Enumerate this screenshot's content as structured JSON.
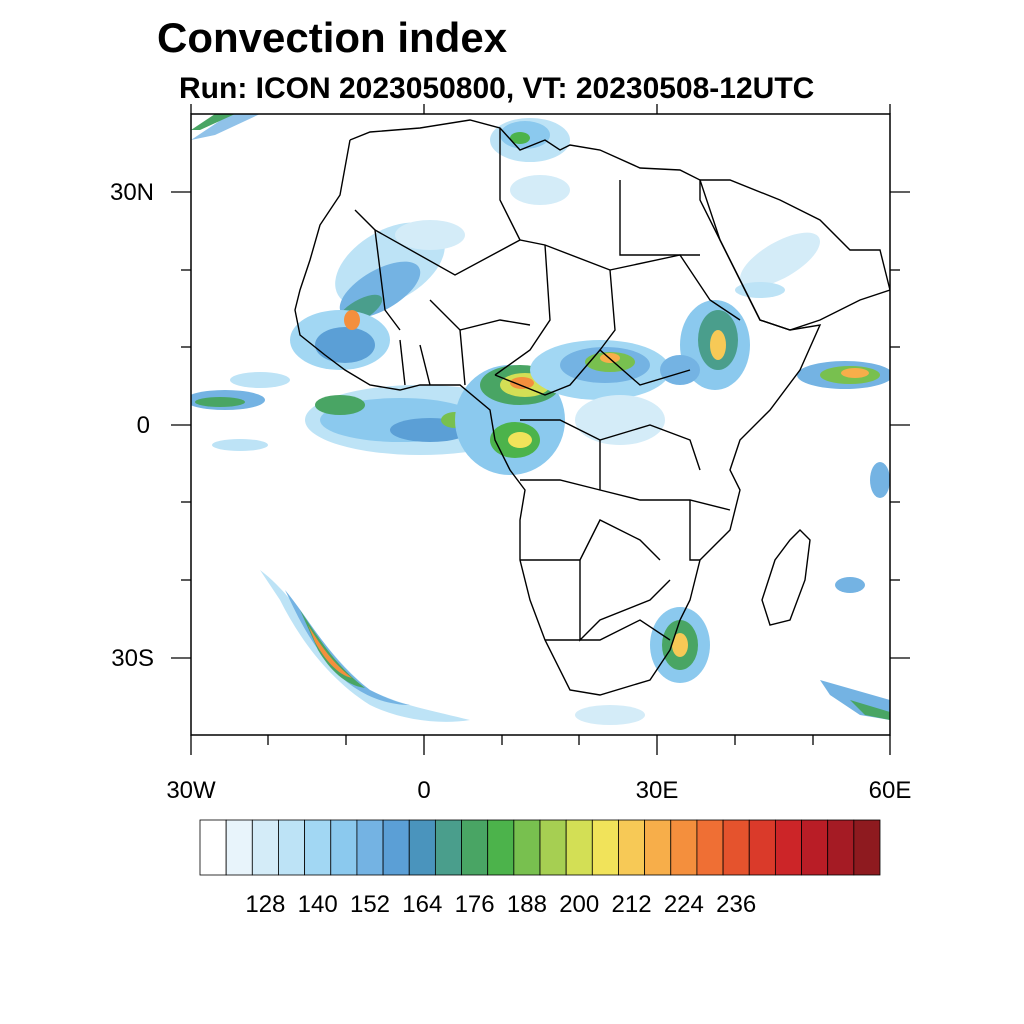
{
  "title": "Convection index",
  "subtitle": "Run: ICON 2023050800,  VT: 20230508-12UTC",
  "map": {
    "lon_range": [
      -30,
      60
    ],
    "lat_range": [
      -40,
      40
    ],
    "x_ticks": [
      {
        "lon": -30,
        "label": "30W"
      },
      {
        "lon": 0,
        "label": "0"
      },
      {
        "lon": 30,
        "label": "30E"
      },
      {
        "lon": 60,
        "label": "60E"
      }
    ],
    "y_ticks": [
      {
        "lat": 30,
        "label": "30N"
      },
      {
        "lat": 0,
        "label": "0"
      },
      {
        "lat": -30,
        "label": "30S"
      }
    ]
  },
  "colorbar": {
    "colors": [
      "#ffffff",
      "#e8f4fb",
      "#d4ecf8",
      "#bde3f6",
      "#a2d7f3",
      "#8bc9ee",
      "#74b3e3",
      "#5b9fd6",
      "#4a94bd",
      "#4a9e8c",
      "#49a564",
      "#4cb34b",
      "#78c04f",
      "#a6cf52",
      "#d3df55",
      "#f1e35a",
      "#f7c956",
      "#f7ae4a",
      "#f48f3d",
      "#ef6f34",
      "#e5532d",
      "#da3a2a",
      "#cc2528",
      "#b91d26",
      "#a51b24",
      "#8e1a1f"
    ],
    "labels": [
      "128",
      "140",
      "152",
      "164",
      "176",
      "188",
      "200",
      "212",
      "224",
      "236"
    ]
  }
}
